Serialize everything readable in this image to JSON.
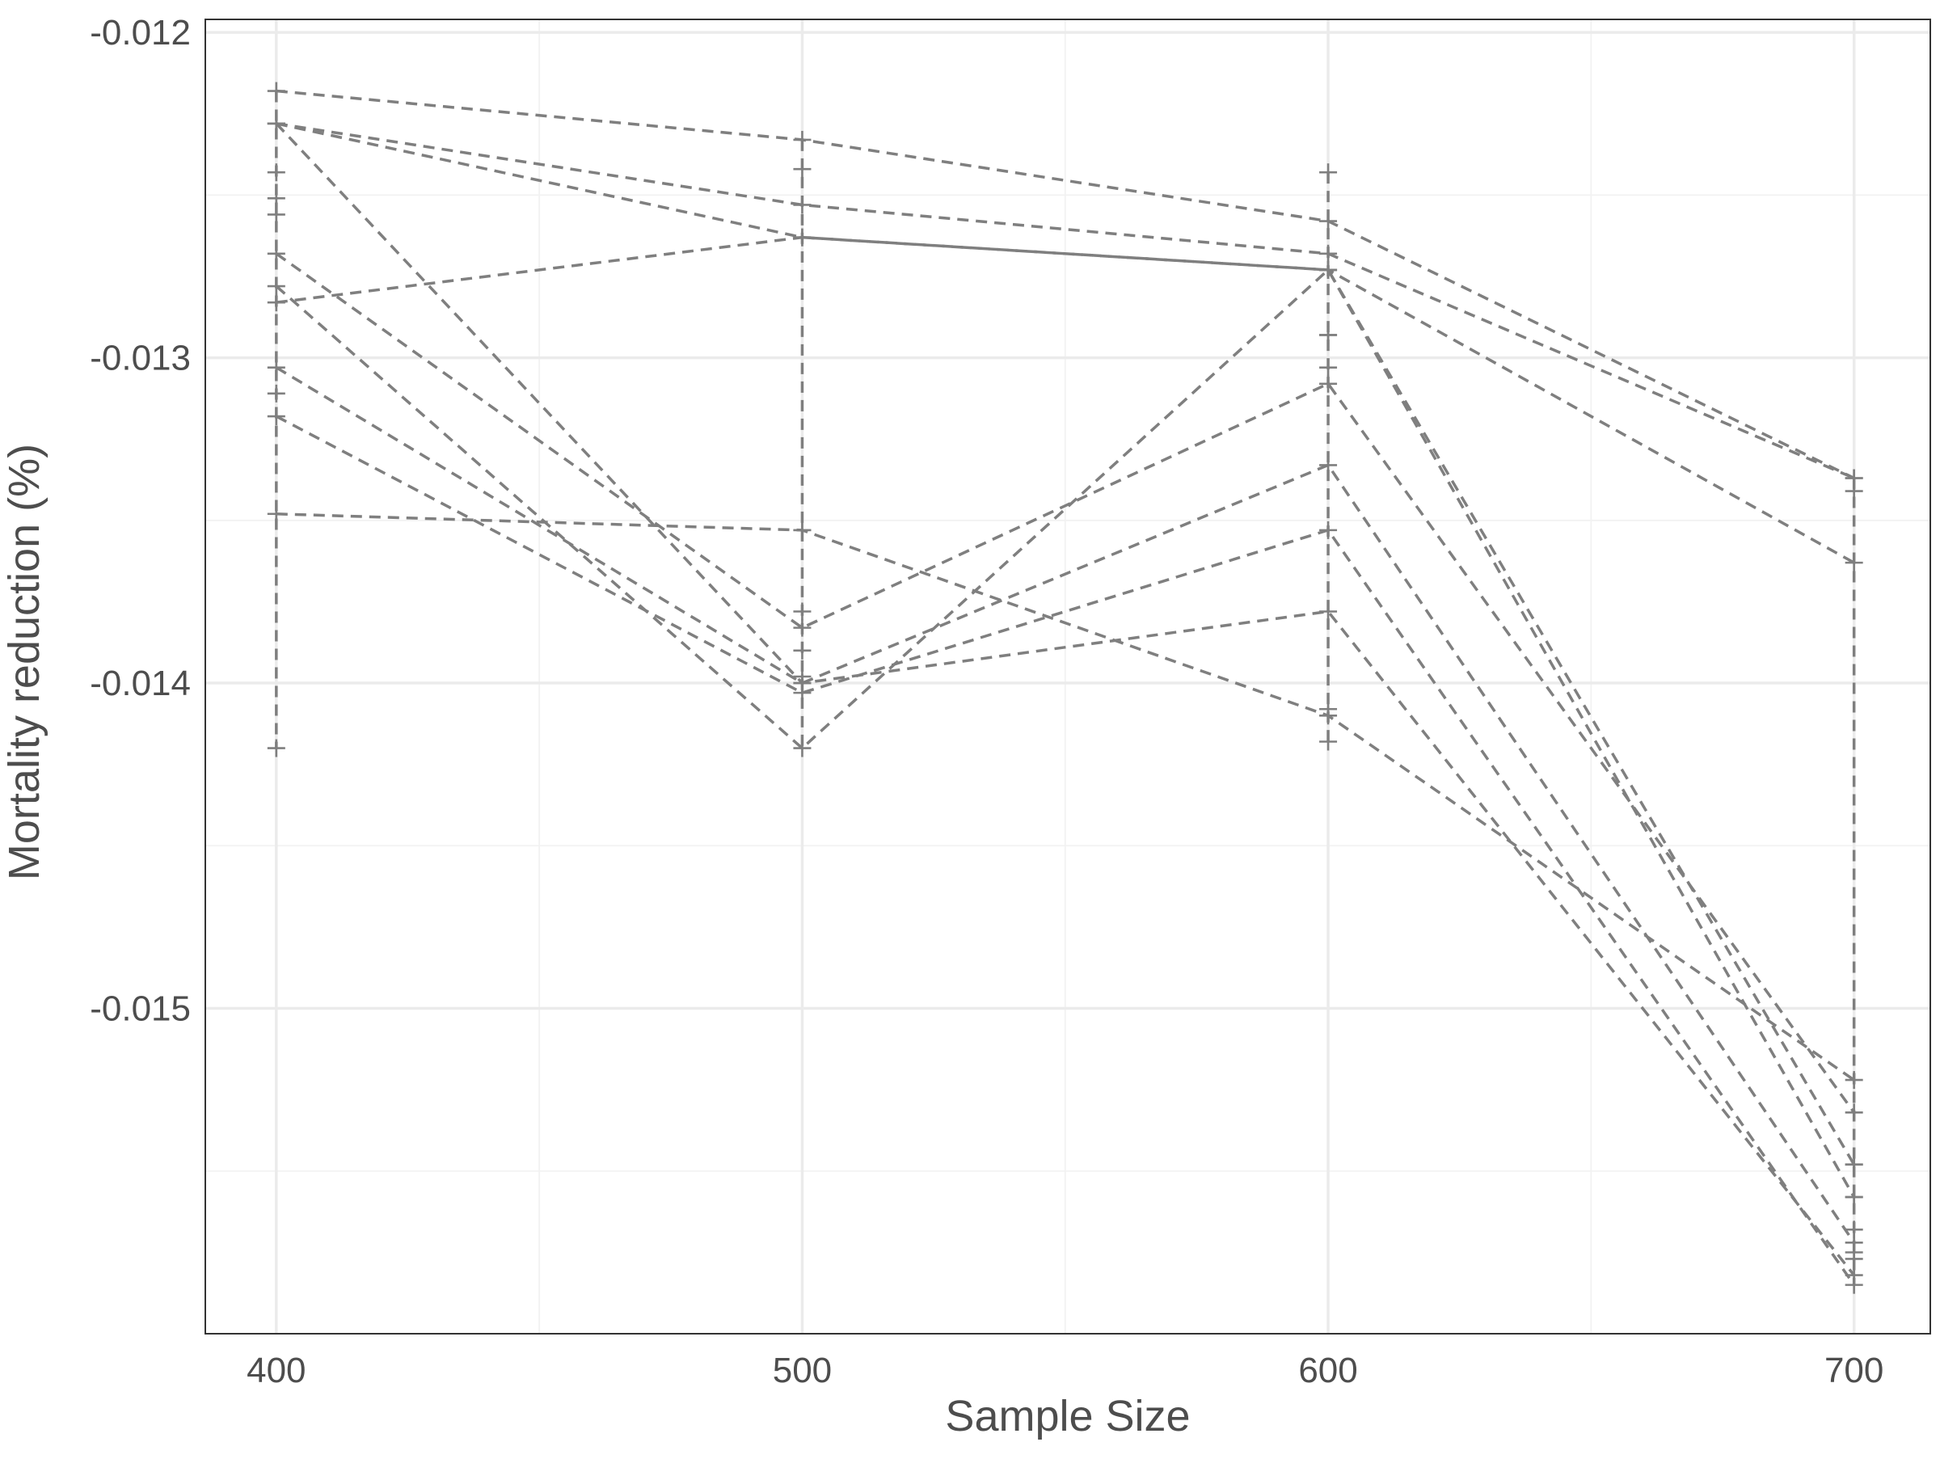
{
  "chart_data": {
    "type": "line",
    "title": "",
    "xlabel": "Sample Size",
    "ylabel": "Mortality reduction (%)",
    "x": [
      400,
      500,
      600,
      700
    ],
    "xlim": [
      386.5,
      714.5
    ],
    "ylim": [
      -0.016,
      -0.01196
    ],
    "x_ticks": [
      400,
      500,
      600,
      700
    ],
    "x_tick_labels": [
      "400",
      "500",
      "600",
      "700"
    ],
    "y_ticks": [
      -0.012,
      -0.013,
      -0.014,
      -0.015
    ],
    "y_tick_labels": [
      "-0.012",
      "-0.013",
      "-0.014",
      "-0.015"
    ],
    "x_minor_ticks": [
      450,
      550,
      650
    ],
    "y_minor_ticks": [
      -0.0125,
      -0.0135,
      -0.0145,
      -0.0155
    ],
    "grid": true,
    "legend": "none",
    "line_style": "dashed",
    "marker": "plus",
    "color": "#7f7f7f",
    "series": [
      {
        "values": [
          -0.01218,
          -0.01233,
          -0.01258,
          -0.01337
        ]
      },
      {
        "values": [
          -0.01228,
          -0.01253,
          -0.01268,
          -0.01337
        ]
      },
      {
        "values": [
          -0.01228,
          -0.01263,
          -0.01273,
          -0.01363
        ]
      },
      {
        "values": [
          -0.01283,
          -0.01263,
          -0.01273,
          -0.01548
        ]
      },
      {
        "values": [
          -0.01268,
          -0.01383,
          -0.01308,
          -0.01532
        ]
      },
      {
        "values": [
          -0.01303,
          -0.014,
          -0.01333,
          -0.01572
        ]
      },
      {
        "values": [
          -0.01228,
          -0.014,
          -0.01378,
          -0.01582
        ]
      },
      {
        "values": [
          -0.01348,
          -0.01353,
          -0.0141,
          -0.01522
        ]
      },
      {
        "values": [
          -0.01318,
          -0.01403,
          -0.01353,
          -0.01585
        ]
      },
      {
        "values": [
          -0.01278,
          -0.0142,
          -0.01273,
          -0.01558
        ]
      }
    ],
    "extra_points": [
      {
        "x": 400,
        "values": [
          -0.01243,
          -0.01251,
          -0.01256,
          -0.01311,
          -0.0142
        ]
      },
      {
        "x": 500,
        "values": [
          -0.01242,
          -0.01353,
          -0.01378,
          -0.0139,
          -0.01398
        ]
      },
      {
        "x": 600,
        "values": [
          -0.01243,
          -0.01293,
          -0.01408,
          -0.01293,
          -0.01303,
          -0.01418
        ]
      },
      {
        "x": 700,
        "values": [
          -0.01341,
          -0.01575,
          -0.01548,
          -0.01568,
          -0.01558,
          -0.01577
        ]
      }
    ]
  }
}
